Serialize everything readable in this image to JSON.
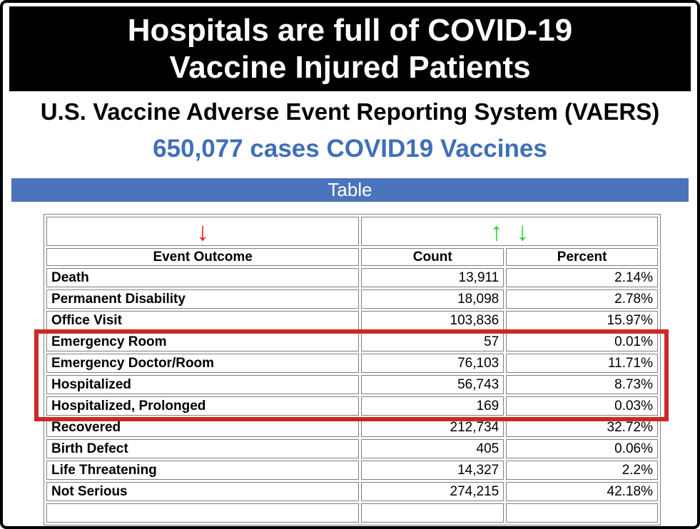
{
  "banner": {
    "line1": "Hospitals are full of COVID-19",
    "line2": "Vaccine Injured Patients"
  },
  "subtitle": "U.S. Vaccine Adverse Event Reporting System (VAERS)",
  "stat_line": "650,077 cases COVID19 Vaccines",
  "table_bar": {
    "label": "Table"
  },
  "icons": {
    "sort_descending": "↓",
    "sort_ascending": "↑"
  },
  "colors": {
    "blue_bar": "#4a74bc",
    "blue_text": "#3f6fb8",
    "arrow_red": "#ea1c1c",
    "arrow_green": "#32cd32",
    "box_red": "#d02626",
    "grid_gray": "#7f7f7f"
  },
  "chart_data": {
    "type": "table",
    "title": "Table",
    "total_cases": 650077,
    "columns": [
      "Event Outcome",
      "Count",
      "Percent"
    ],
    "rows": [
      {
        "outcome": "Death",
        "count": "13,911",
        "count_value": 13911,
        "percent": "2.14%",
        "percent_value": 2.14
      },
      {
        "outcome": "Permanent Disability",
        "count": "18,098",
        "count_value": 18098,
        "percent": "2.78%",
        "percent_value": 2.78
      },
      {
        "outcome": "Office Visit",
        "count": "103,836",
        "count_value": 103836,
        "percent": "15.97%",
        "percent_value": 15.97
      },
      {
        "outcome": "Emergency Room",
        "count": "57",
        "count_value": 57,
        "percent": "0.01%",
        "percent_value": 0.01
      },
      {
        "outcome": "Emergency Doctor/Room",
        "count": "76,103",
        "count_value": 76103,
        "percent": "11.71%",
        "percent_value": 11.71
      },
      {
        "outcome": "Hospitalized",
        "count": "56,743",
        "count_value": 56743,
        "percent": "8.73%",
        "percent_value": 8.73
      },
      {
        "outcome": "Hospitalized, Prolonged",
        "count": "169",
        "count_value": 169,
        "percent": "0.03%",
        "percent_value": 0.03
      },
      {
        "outcome": "Recovered",
        "count": "212,734",
        "count_value": 212734,
        "percent": "32.72%",
        "percent_value": 32.72
      },
      {
        "outcome": "Birth Defect",
        "count": "405",
        "count_value": 405,
        "percent": "0.06%",
        "percent_value": 0.06
      },
      {
        "outcome": "Life Threatening",
        "count": "14,327",
        "count_value": 14327,
        "percent": "2.2%",
        "percent_value": 2.2
      },
      {
        "outcome": "Not Serious",
        "count": "274,215",
        "count_value": 274215,
        "percent": "42.18%",
        "percent_value": 42.18
      }
    ],
    "highlighted_rows": [
      "Emergency Room",
      "Emergency Doctor/Room",
      "Hospitalized",
      "Hospitalized, Prolonged"
    ],
    "highlight_color": "#d02626"
  }
}
